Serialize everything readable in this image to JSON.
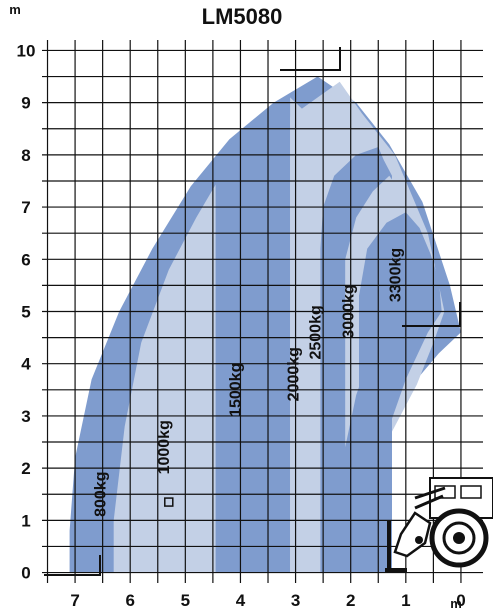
{
  "chart_data": {
    "type": "area",
    "title": "LM5080",
    "y_unit": "m",
    "x_unit": "m",
    "x_ticks": [
      7,
      6,
      5,
      4,
      3,
      2,
      1,
      0
    ],
    "y_ticks": [
      10,
      9,
      8,
      7,
      6,
      5,
      4,
      3,
      2,
      1,
      0
    ],
    "xlim": [
      7.6,
      -0.4
    ],
    "ylim": [
      -0.2,
      10.2
    ],
    "grid": true,
    "colors": {
      "dark": "#7f9cce",
      "light": "#c3d0e6",
      "grid": "#111111"
    },
    "zones": [
      {
        "label": "800kg",
        "label_at": [
          6.45,
          1.5
        ],
        "tone": "dark",
        "outline": [
          [
            7.1,
            0
          ],
          [
            7.1,
            0.8
          ],
          [
            7.0,
            2.2
          ],
          [
            6.7,
            3.7
          ],
          [
            6.2,
            5.0
          ],
          [
            5.6,
            6.2
          ],
          [
            4.9,
            7.4
          ],
          [
            4.2,
            8.3
          ],
          [
            3.4,
            9.0
          ],
          [
            2.6,
            9.5
          ],
          [
            1.9,
            9.0
          ],
          [
            1.3,
            8.2
          ],
          [
            0.7,
            7.1
          ],
          [
            0.2,
            5.5
          ],
          [
            0.0,
            4.6
          ],
          [
            0.4,
            4.2
          ],
          [
            0.8,
            3.7
          ],
          [
            1.3,
            2.9
          ],
          [
            1.5,
            2.4
          ],
          [
            1.5,
            0
          ]
        ]
      },
      {
        "label": "1000kg",
        "label_at": [
          5.3,
          2.4
        ],
        "tone": "light",
        "outline": [
          [
            6.3,
            0
          ],
          [
            6.3,
            1.0
          ],
          [
            6.1,
            2.8
          ],
          [
            5.8,
            4.4
          ],
          [
            5.3,
            5.8
          ],
          [
            4.8,
            6.8
          ],
          [
            4.3,
            7.7
          ],
          [
            3.6,
            8.4
          ],
          [
            3.0,
            8.8
          ],
          [
            2.2,
            9.4
          ],
          [
            1.8,
            8.8
          ],
          [
            1.2,
            8.0
          ],
          [
            0.6,
            6.5
          ],
          [
            0.3,
            5.0
          ],
          [
            0.5,
            4.4
          ],
          [
            0.8,
            3.6
          ],
          [
            1.3,
            2.6
          ],
          [
            1.5,
            2.0
          ],
          [
            1.5,
            0
          ]
        ]
      },
      {
        "label": "1500kg",
        "label_at": [
          4.0,
          3.5
        ],
        "tone": "dark",
        "outline": [
          [
            4.45,
            0
          ],
          [
            4.45,
            7.8
          ],
          [
            4.1,
            8.3
          ],
          [
            3.5,
            8.8
          ],
          [
            3.1,
            9.1
          ],
          [
            3.1,
            0
          ]
        ]
      },
      {
        "label": "2000kg",
        "label_at": [
          2.95,
          3.8
        ],
        "tone": "light",
        "outline": [
          [
            3.1,
            0
          ],
          [
            3.1,
            9.1
          ],
          [
            2.8,
            8.8
          ],
          [
            2.55,
            8.2
          ],
          [
            2.55,
            0
          ]
        ]
      },
      {
        "label": "2500kg",
        "label_at": [
          2.55,
          4.6
        ],
        "tone": "dark",
        "outline": [
          [
            2.55,
            0
          ],
          [
            2.55,
            6.2
          ],
          [
            2.5,
            7.0
          ],
          [
            2.3,
            7.6
          ],
          [
            1.9,
            8.0
          ],
          [
            1.5,
            8.15
          ],
          [
            1.4,
            7.9
          ],
          [
            1.25,
            7.6
          ],
          [
            1.25,
            0
          ]
        ]
      },
      {
        "label": "3000kg",
        "label_at": [
          1.95,
          5.0
        ],
        "tone": "light",
        "outline": [
          [
            2.1,
            0
          ],
          [
            2.1,
            6.0
          ],
          [
            1.9,
            6.8
          ],
          [
            1.6,
            7.3
          ],
          [
            1.3,
            7.6
          ],
          [
            1.1,
            7.3
          ],
          [
            0.9,
            6.9
          ],
          [
            1.3,
            5.2
          ],
          [
            1.6,
            4.3
          ],
          [
            1.9,
            3.4
          ],
          [
            2.1,
            2.4
          ]
        ]
      },
      {
        "label": "3300kg",
        "label_at": [
          1.1,
          5.7
        ],
        "tone": "dark",
        "outline": [
          [
            1.85,
            0
          ],
          [
            1.85,
            5.3
          ],
          [
            1.7,
            6.2
          ],
          [
            1.35,
            6.7
          ],
          [
            1.0,
            6.9
          ],
          [
            0.75,
            6.6
          ],
          [
            0.55,
            6.1
          ],
          [
            0.4,
            5.6
          ],
          [
            0.35,
            5.0
          ],
          [
            0.6,
            4.6
          ],
          [
            1.0,
            3.7
          ],
          [
            1.3,
            2.8
          ],
          [
            1.5,
            1.8
          ],
          [
            1.55,
            0
          ]
        ]
      }
    ]
  }
}
